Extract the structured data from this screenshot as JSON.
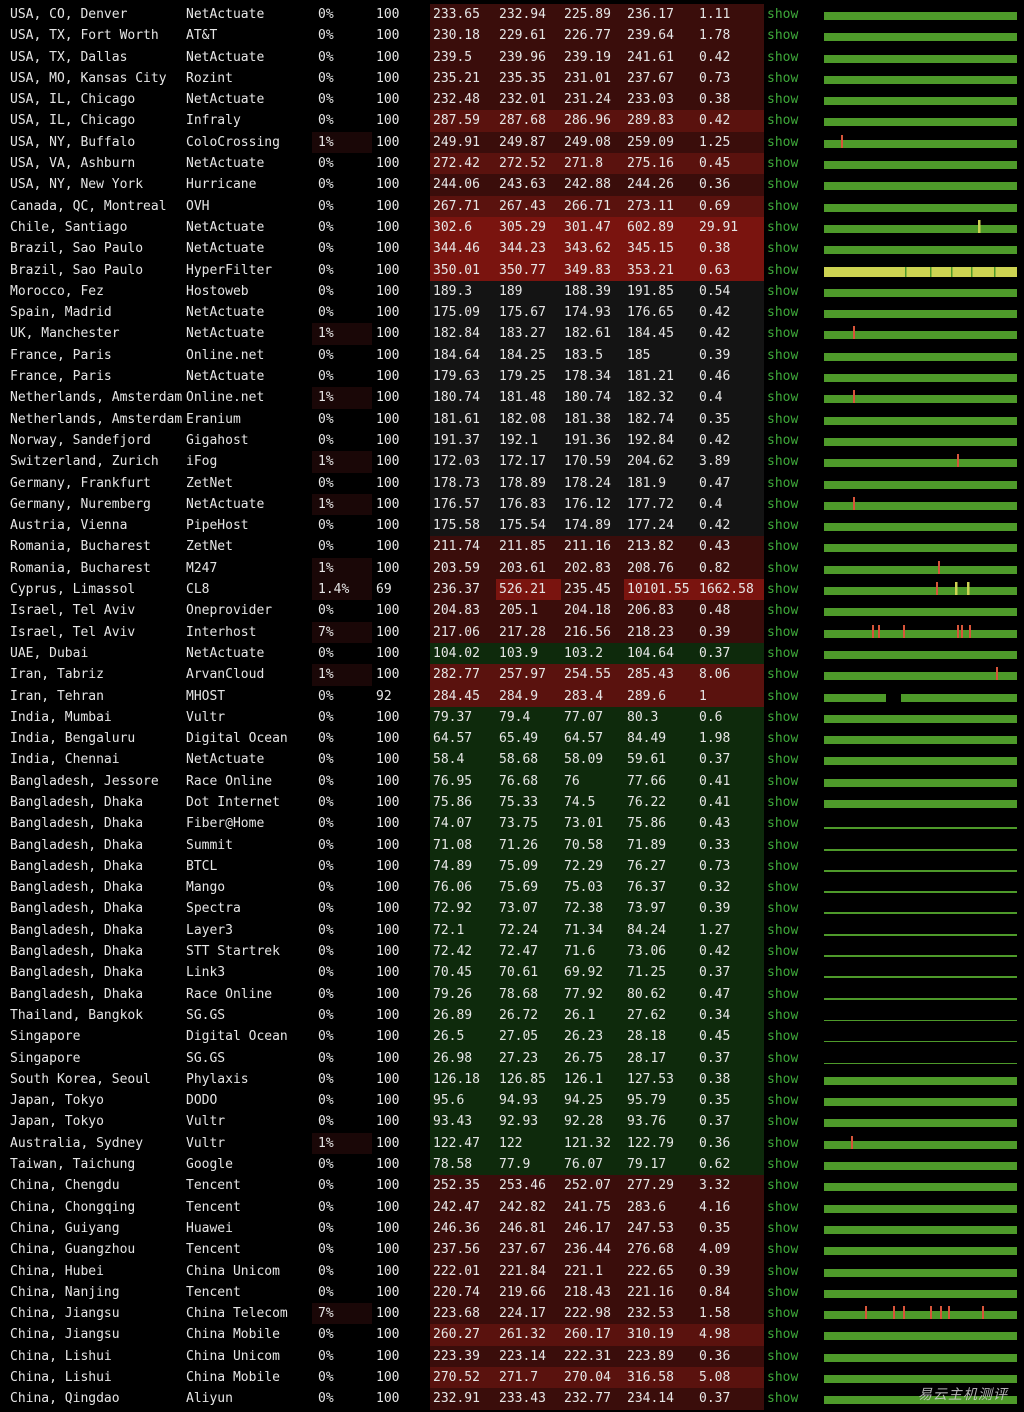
{
  "show_label": "show",
  "watermark": "易云主机测评",
  "colors": {
    "green_bar": "#4e9a2a",
    "yellow_bar": "#cdd352",
    "spike": "#d7553a",
    "show_link": "#3fa93a",
    "lat_green": "#0e2a0c",
    "lat_dark": "#141414",
    "lat_red1": "#3a0d0b",
    "lat_red2": "#5a120e",
    "lat_red3": "#7a140f"
  },
  "rows": [
    {
      "loc": "USA, CO, Denver",
      "prov": "NetActuate",
      "loss": "0%",
      "sent": "100",
      "last": "233.65",
      "avg": "232.94",
      "best": "225.89",
      "wrst": "236.17",
      "stdv": "1.11",
      "tone": "r1",
      "bar": "g"
    },
    {
      "loc": "USA, TX, Fort Worth",
      "prov": "AT&T",
      "loss": "0%",
      "sent": "100",
      "last": "230.18",
      "avg": "229.61",
      "best": "226.77",
      "wrst": "239.64",
      "stdv": "1.78",
      "tone": "r1",
      "bar": "g"
    },
    {
      "loc": "USA, TX, Dallas",
      "prov": "NetActuate",
      "loss": "0%",
      "sent": "100",
      "last": "239.5",
      "avg": "239.96",
      "best": "239.19",
      "wrst": "241.61",
      "stdv": "0.42",
      "tone": "r1",
      "bar": "g"
    },
    {
      "loc": "USA, MO, Kansas City",
      "prov": "Rozint",
      "loss": "0%",
      "sent": "100",
      "last": "235.21",
      "avg": "235.35",
      "best": "231.01",
      "wrst": "237.67",
      "stdv": "0.73",
      "tone": "r1",
      "bar": "g"
    },
    {
      "loc": "USA, IL, Chicago",
      "prov": "NetActuate",
      "loss": "0%",
      "sent": "100",
      "last": "232.48",
      "avg": "232.01",
      "best": "231.24",
      "wrst": "233.03",
      "stdv": "0.38",
      "tone": "r1",
      "bar": "g"
    },
    {
      "loc": "USA, IL, Chicago",
      "prov": "Infraly",
      "loss": "0%",
      "sent": "100",
      "last": "287.59",
      "avg": "287.68",
      "best": "286.96",
      "wrst": "289.83",
      "stdv": "0.42",
      "tone": "r2",
      "bar": "g"
    },
    {
      "loc": "USA, NY, Buffalo",
      "prov": "ColoCrossing",
      "loss": "1%",
      "sent": "100",
      "last": "249.91",
      "avg": "249.87",
      "best": "249.08",
      "wrst": "259.09",
      "stdv": "1.25",
      "tone": "r1",
      "bar": "g",
      "spikes": [
        0.09
      ]
    },
    {
      "loc": "USA, VA, Ashburn",
      "prov": "NetActuate",
      "loss": "0%",
      "sent": "100",
      "last": "272.42",
      "avg": "272.52",
      "best": "271.8",
      "wrst": "275.16",
      "stdv": "0.45",
      "tone": "r2",
      "bar": "g"
    },
    {
      "loc": "USA, NY, New York",
      "prov": "Hurricane",
      "loss": "0%",
      "sent": "100",
      "last": "244.06",
      "avg": "243.63",
      "best": "242.88",
      "wrst": "244.26",
      "stdv": "0.36",
      "tone": "r1",
      "bar": "g"
    },
    {
      "loc": "Canada, QC, Montreal",
      "prov": "OVH",
      "loss": "0%",
      "sent": "100",
      "last": "267.71",
      "avg": "267.43",
      "best": "266.71",
      "wrst": "273.11",
      "stdv": "0.69",
      "tone": "r2",
      "bar": "g"
    },
    {
      "loc": "Chile, Santiago",
      "prov": "NetActuate",
      "loss": "0%",
      "sent": "100",
      "last": "302.6",
      "avg": "305.29",
      "best": "301.47",
      "wrst": "602.89",
      "stdv": "29.91",
      "tone": "r3",
      "bar": "g",
      "yspikes": [
        0.8
      ],
      "wide": true
    },
    {
      "loc": "Brazil, Sao Paulo",
      "prov": "NetActuate",
      "loss": "0%",
      "sent": "100",
      "last": "344.46",
      "avg": "344.23",
      "best": "343.62",
      "wrst": "345.15",
      "stdv": "0.38",
      "tone": "r3",
      "bar": "g"
    },
    {
      "loc": "Brazil, Sao Paulo",
      "prov": "HyperFilter",
      "loss": "0%",
      "sent": "100",
      "last": "350.01",
      "avg": "350.77",
      "best": "349.83",
      "wrst": "353.21",
      "stdv": "0.63",
      "tone": "r3",
      "bar": "y"
    },
    {
      "loc": "Morocco, Fez",
      "prov": "Hostoweb",
      "loss": "0%",
      "sent": "100",
      "last": "189.3",
      "avg": "189",
      "best": "188.39",
      "wrst": "191.85",
      "stdv": "0.54",
      "tone": "d",
      "bar": "g"
    },
    {
      "loc": "Spain, Madrid",
      "prov": "NetActuate",
      "loss": "0%",
      "sent": "100",
      "last": "175.09",
      "avg": "175.67",
      "best": "174.93",
      "wrst": "176.65",
      "stdv": "0.42",
      "tone": "d",
      "bar": "g"
    },
    {
      "loc": "UK, Manchester",
      "prov": "NetActuate",
      "loss": "1%",
      "sent": "100",
      "last": "182.84",
      "avg": "183.27",
      "best": "182.61",
      "wrst": "184.45",
      "stdv": "0.42",
      "tone": "d",
      "bar": "g",
      "spikes": [
        0.15
      ]
    },
    {
      "loc": "France, Paris",
      "prov": "Online.net",
      "loss": "0%",
      "sent": "100",
      "last": "184.64",
      "avg": "184.25",
      "best": "183.5",
      "wrst": "185",
      "stdv": "0.39",
      "tone": "d",
      "bar": "g"
    },
    {
      "loc": "France, Paris",
      "prov": "NetActuate",
      "loss": "0%",
      "sent": "100",
      "last": "179.63",
      "avg": "179.25",
      "best": "178.34",
      "wrst": "181.21",
      "stdv": "0.46",
      "tone": "d",
      "bar": "g"
    },
    {
      "loc": "Netherlands, Amsterdam",
      "prov": "Online.net",
      "loss": "1%",
      "sent": "100",
      "last": "180.74",
      "avg": "181.48",
      "best": "180.74",
      "wrst": "182.32",
      "stdv": "0.4",
      "tone": "d",
      "bar": "g",
      "spikes": [
        0.15
      ]
    },
    {
      "loc": "Netherlands, Amsterdam",
      "prov": "Eranium",
      "loss": "0%",
      "sent": "100",
      "last": "181.61",
      "avg": "182.08",
      "best": "181.38",
      "wrst": "182.74",
      "stdv": "0.35",
      "tone": "d",
      "bar": "g"
    },
    {
      "loc": "Norway, Sandefjord",
      "prov": "Gigahost",
      "loss": "0%",
      "sent": "100",
      "last": "191.37",
      "avg": "192.1",
      "best": "191.36",
      "wrst": "192.84",
      "stdv": "0.42",
      "tone": "d",
      "bar": "g"
    },
    {
      "loc": "Switzerland, Zurich",
      "prov": "iFog",
      "loss": "1%",
      "sent": "100",
      "last": "172.03",
      "avg": "172.17",
      "best": "170.59",
      "wrst": "204.62",
      "stdv": "3.89",
      "tone": "d",
      "bar": "g",
      "spikes": [
        0.69
      ]
    },
    {
      "loc": "Germany, Frankfurt",
      "prov": "ZetNet",
      "loss": "0%",
      "sent": "100",
      "last": "178.73",
      "avg": "178.89",
      "best": "178.24",
      "wrst": "181.9",
      "stdv": "0.47",
      "tone": "d",
      "bar": "g"
    },
    {
      "loc": "Germany, Nuremberg",
      "prov": "NetActuate",
      "loss": "1%",
      "sent": "100",
      "last": "176.57",
      "avg": "176.83",
      "best": "176.12",
      "wrst": "177.72",
      "stdv": "0.4",
      "tone": "d",
      "bar": "g",
      "spikes": [
        0.15
      ]
    },
    {
      "loc": "Austria, Vienna",
      "prov": "PipeHost",
      "loss": "0%",
      "sent": "100",
      "last": "175.58",
      "avg": "175.54",
      "best": "174.89",
      "wrst": "177.24",
      "stdv": "0.42",
      "tone": "d",
      "bar": "g"
    },
    {
      "loc": "Romania, Bucharest",
      "prov": "ZetNet",
      "loss": "0%",
      "sent": "100",
      "last": "211.74",
      "avg": "211.85",
      "best": "211.16",
      "wrst": "213.82",
      "stdv": "0.43",
      "tone": "r1",
      "bar": "g"
    },
    {
      "loc": "Romania, Bucharest",
      "prov": "M247",
      "loss": "1%",
      "sent": "100",
      "last": "203.59",
      "avg": "203.61",
      "best": "202.83",
      "wrst": "208.76",
      "stdv": "0.82",
      "tone": "r1",
      "bar": "g",
      "spikes": [
        0.59
      ]
    },
    {
      "loc": "Cyprus, Limassol",
      "prov": "CL8",
      "loss": "1.4%",
      "sent": "69",
      "last": "236.37",
      "avg": "526.21",
      "best": "235.45",
      "wrst": "10101.55",
      "stdv": "1662.58",
      "tone": "r1",
      "bar": "g",
      "spikes": [
        0.58
      ],
      "yspikes": [
        0.68,
        0.74
      ],
      "hot": true
    },
    {
      "loc": "Israel, Tel Aviv",
      "prov": "Oneprovider",
      "loss": "0%",
      "sent": "100",
      "last": "204.83",
      "avg": "205.1",
      "best": "204.18",
      "wrst": "206.83",
      "stdv": "0.48",
      "tone": "r1",
      "bar": "g"
    },
    {
      "loc": "Israel, Tel Aviv",
      "prov": "Interhost",
      "loss": "7%",
      "sent": "100",
      "last": "217.06",
      "avg": "217.28",
      "best": "216.56",
      "wrst": "218.23",
      "stdv": "0.39",
      "tone": "r1",
      "bar": "g",
      "spikes": [
        0.25,
        0.28,
        0.41,
        0.69,
        0.71,
        0.75
      ]
    },
    {
      "loc": "UAE, Dubai",
      "prov": "NetActuate",
      "loss": "0%",
      "sent": "100",
      "last": "104.02",
      "avg": "103.9",
      "best": "103.2",
      "wrst": "104.64",
      "stdv": "0.37",
      "tone": "g",
      "bar": "g"
    },
    {
      "loc": "Iran, Tabriz",
      "prov": "ArvanCloud",
      "loss": "1%",
      "sent": "100",
      "last": "282.77",
      "avg": "257.97",
      "best": "254.55",
      "wrst": "285.43",
      "stdv": "8.06",
      "tone": "r2",
      "bar": "g",
      "spikes": [
        0.89
      ]
    },
    {
      "loc": "Iran, Tehran",
      "prov": "MHOST",
      "loss": "0%",
      "sent": "92",
      "last": "284.45",
      "avg": "284.9",
      "best": "283.4",
      "wrst": "289.6",
      "stdv": "1",
      "tone": "r2",
      "bar": "gap"
    },
    {
      "loc": "India, Mumbai",
      "prov": "Vultr",
      "loss": "0%",
      "sent": "100",
      "last": "79.37",
      "avg": "79.4",
      "best": "77.07",
      "wrst": "80.3",
      "stdv": "0.6",
      "tone": "g",
      "bar": "g"
    },
    {
      "loc": "India, Bengaluru",
      "prov": "Digital Ocean",
      "loss": "0%",
      "sent": "100",
      "last": "64.57",
      "avg": "65.49",
      "best": "64.57",
      "wrst": "84.49",
      "stdv": "1.98",
      "tone": "g",
      "bar": "g"
    },
    {
      "loc": "India, Chennai",
      "prov": "NetActuate",
      "loss": "0%",
      "sent": "100",
      "last": "58.4",
      "avg": "58.68",
      "best": "58.09",
      "wrst": "59.61",
      "stdv": "0.37",
      "tone": "g",
      "bar": "g"
    },
    {
      "loc": "Bangladesh, Jessore",
      "prov": "Race Online",
      "loss": "0%",
      "sent": "100",
      "last": "76.95",
      "avg": "76.68",
      "best": "76",
      "wrst": "77.66",
      "stdv": "0.41",
      "tone": "g",
      "bar": "g"
    },
    {
      "loc": "Bangladesh, Dhaka",
      "prov": "Dot Internet",
      "loss": "0%",
      "sent": "100",
      "last": "75.86",
      "avg": "75.33",
      "best": "74.5",
      "wrst": "76.22",
      "stdv": "0.41",
      "tone": "g",
      "bar": "g"
    },
    {
      "loc": "Bangladesh, Dhaka",
      "prov": "Fiber@Home",
      "loss": "0%",
      "sent": "100",
      "last": "74.07",
      "avg": "73.75",
      "best": "73.01",
      "wrst": "75.86",
      "stdv": "0.43",
      "tone": "g",
      "bar": "thin"
    },
    {
      "loc": "Bangladesh, Dhaka",
      "prov": "Summit",
      "loss": "0%",
      "sent": "100",
      "last": "71.08",
      "avg": "71.26",
      "best": "70.58",
      "wrst": "71.89",
      "stdv": "0.33",
      "tone": "g",
      "bar": "thin"
    },
    {
      "loc": "Bangladesh, Dhaka",
      "prov": "BTCL",
      "loss": "0%",
      "sent": "100",
      "last": "74.89",
      "avg": "75.09",
      "best": "72.29",
      "wrst": "76.27",
      "stdv": "0.73",
      "tone": "g",
      "bar": "thin"
    },
    {
      "loc": "Bangladesh, Dhaka",
      "prov": "Mango",
      "loss": "0%",
      "sent": "100",
      "last": "76.06",
      "avg": "75.69",
      "best": "75.03",
      "wrst": "76.37",
      "stdv": "0.32",
      "tone": "g",
      "bar": "thin"
    },
    {
      "loc": "Bangladesh, Dhaka",
      "prov": "Spectra",
      "loss": "0%",
      "sent": "100",
      "last": "72.92",
      "avg": "73.07",
      "best": "72.38",
      "wrst": "73.97",
      "stdv": "0.39",
      "tone": "g",
      "bar": "thin"
    },
    {
      "loc": "Bangladesh, Dhaka",
      "prov": "Layer3",
      "loss": "0%",
      "sent": "100",
      "last": "72.1",
      "avg": "72.24",
      "best": "71.34",
      "wrst": "84.24",
      "stdv": "1.27",
      "tone": "g",
      "bar": "thin"
    },
    {
      "loc": "Bangladesh, Dhaka",
      "prov": "STT Startrek",
      "loss": "0%",
      "sent": "100",
      "last": "72.42",
      "avg": "72.47",
      "best": "71.6",
      "wrst": "73.06",
      "stdv": "0.42",
      "tone": "g",
      "bar": "thin"
    },
    {
      "loc": "Bangladesh, Dhaka",
      "prov": "Link3",
      "loss": "0%",
      "sent": "100",
      "last": "70.45",
      "avg": "70.61",
      "best": "69.92",
      "wrst": "71.25",
      "stdv": "0.37",
      "tone": "g",
      "bar": "thin"
    },
    {
      "loc": "Bangladesh, Dhaka",
      "prov": "Race Online",
      "loss": "0%",
      "sent": "100",
      "last": "79.26",
      "avg": "78.68",
      "best": "77.92",
      "wrst": "80.62",
      "stdv": "0.47",
      "tone": "g",
      "bar": "thin"
    },
    {
      "loc": "Thailand, Bangkok",
      "prov": "SG.GS",
      "loss": "0%",
      "sent": "100",
      "last": "26.89",
      "avg": "26.72",
      "best": "26.1",
      "wrst": "27.62",
      "stdv": "0.34",
      "tone": "g",
      "bar": "line"
    },
    {
      "loc": "Singapore",
      "prov": "Digital Ocean",
      "loss": "0%",
      "sent": "100",
      "last": "26.5",
      "avg": "27.05",
      "best": "26.23",
      "wrst": "28.18",
      "stdv": "0.45",
      "tone": "g",
      "bar": "line"
    },
    {
      "loc": "Singapore",
      "prov": "SG.GS",
      "loss": "0%",
      "sent": "100",
      "last": "26.98",
      "avg": "27.23",
      "best": "26.75",
      "wrst": "28.17",
      "stdv": "0.37",
      "tone": "g",
      "bar": "line"
    },
    {
      "loc": "South Korea, Seoul",
      "prov": "Phylaxis",
      "loss": "0%",
      "sent": "100",
      "last": "126.18",
      "avg": "126.85",
      "best": "126.1",
      "wrst": "127.53",
      "stdv": "0.38",
      "tone": "g",
      "bar": "g"
    },
    {
      "loc": "Japan, Tokyo",
      "prov": "DODO",
      "loss": "0%",
      "sent": "100",
      "last": "95.6",
      "avg": "94.93",
      "best": "94.25",
      "wrst": "95.79",
      "stdv": "0.35",
      "tone": "g",
      "bar": "g"
    },
    {
      "loc": "Japan, Tokyo",
      "prov": "Vultr",
      "loss": "0%",
      "sent": "100",
      "last": "93.43",
      "avg": "92.93",
      "best": "92.28",
      "wrst": "93.76",
      "stdv": "0.37",
      "tone": "g",
      "bar": "g"
    },
    {
      "loc": "Australia, Sydney",
      "prov": "Vultr",
      "loss": "1%",
      "sent": "100",
      "last": "122.47",
      "avg": "122",
      "best": "121.32",
      "wrst": "122.79",
      "stdv": "0.36",
      "tone": "g",
      "bar": "g",
      "spikes": [
        0.14
      ]
    },
    {
      "loc": "Taiwan, Taichung",
      "prov": "Google",
      "loss": "0%",
      "sent": "100",
      "last": "78.58",
      "avg": "77.9",
      "best": "76.07",
      "wrst": "79.17",
      "stdv": "0.62",
      "tone": "g",
      "bar": "g"
    },
    {
      "loc": "China, Chengdu",
      "prov": "Tencent",
      "loss": "0%",
      "sent": "100",
      "last": "252.35",
      "avg": "253.46",
      "best": "252.07",
      "wrst": "277.29",
      "stdv": "3.32",
      "tone": "r1",
      "bar": "g"
    },
    {
      "loc": "China, Chongqing",
      "prov": "Tencent",
      "loss": "0%",
      "sent": "100",
      "last": "242.47",
      "avg": "242.82",
      "best": "241.75",
      "wrst": "283.6",
      "stdv": "4.16",
      "tone": "r1",
      "bar": "g"
    },
    {
      "loc": "China, Guiyang",
      "prov": "Huawei",
      "loss": "0%",
      "sent": "100",
      "last": "246.36",
      "avg": "246.81",
      "best": "246.17",
      "wrst": "247.53",
      "stdv": "0.35",
      "tone": "r1",
      "bar": "g"
    },
    {
      "loc": "China, Guangzhou",
      "prov": "Tencent",
      "loss": "0%",
      "sent": "100",
      "last": "237.56",
      "avg": "237.67",
      "best": "236.44",
      "wrst": "276.68",
      "stdv": "4.09",
      "tone": "r1",
      "bar": "g"
    },
    {
      "loc": "China, Hubei",
      "prov": "China Unicom",
      "loss": "0%",
      "sent": "100",
      "last": "222.01",
      "avg": "221.84",
      "best": "221.1",
      "wrst": "222.65",
      "stdv": "0.39",
      "tone": "r1",
      "bar": "g"
    },
    {
      "loc": "China, Nanjing",
      "prov": "Tencent",
      "loss": "0%",
      "sent": "100",
      "last": "220.74",
      "avg": "219.66",
      "best": "218.43",
      "wrst": "221.16",
      "stdv": "0.84",
      "tone": "r1",
      "bar": "g"
    },
    {
      "loc": "China, Jiangsu",
      "prov": "China Telecom",
      "loss": "7%",
      "sent": "100",
      "last": "223.68",
      "avg": "224.17",
      "best": "222.98",
      "wrst": "232.53",
      "stdv": "1.58",
      "tone": "r1",
      "bar": "g",
      "spikes": [
        0.21,
        0.36,
        0.41,
        0.55,
        0.6,
        0.64,
        0.82
      ]
    },
    {
      "loc": "China, Jiangsu",
      "prov": "China Mobile",
      "loss": "0%",
      "sent": "100",
      "last": "260.27",
      "avg": "261.32",
      "best": "260.17",
      "wrst": "310.19",
      "stdv": "4.98",
      "tone": "r2",
      "bar": "g"
    },
    {
      "loc": "China, Lishui",
      "prov": "China Unicom",
      "loss": "0%",
      "sent": "100",
      "last": "223.39",
      "avg": "223.14",
      "best": "222.31",
      "wrst": "223.89",
      "stdv": "0.36",
      "tone": "r1",
      "bar": "g"
    },
    {
      "loc": "China, Lishui",
      "prov": "China Mobile",
      "loss": "0%",
      "sent": "100",
      "last": "270.52",
      "avg": "271.7",
      "best": "270.04",
      "wrst": "316.58",
      "stdv": "5.08",
      "tone": "r2",
      "bar": "g"
    },
    {
      "loc": "China, Qingdao",
      "prov": "Aliyun",
      "loss": "0%",
      "sent": "100",
      "last": "232.91",
      "avg": "233.43",
      "best": "232.77",
      "wrst": "234.14",
      "stdv": "0.37",
      "tone": "r1",
      "bar": "g"
    }
  ]
}
